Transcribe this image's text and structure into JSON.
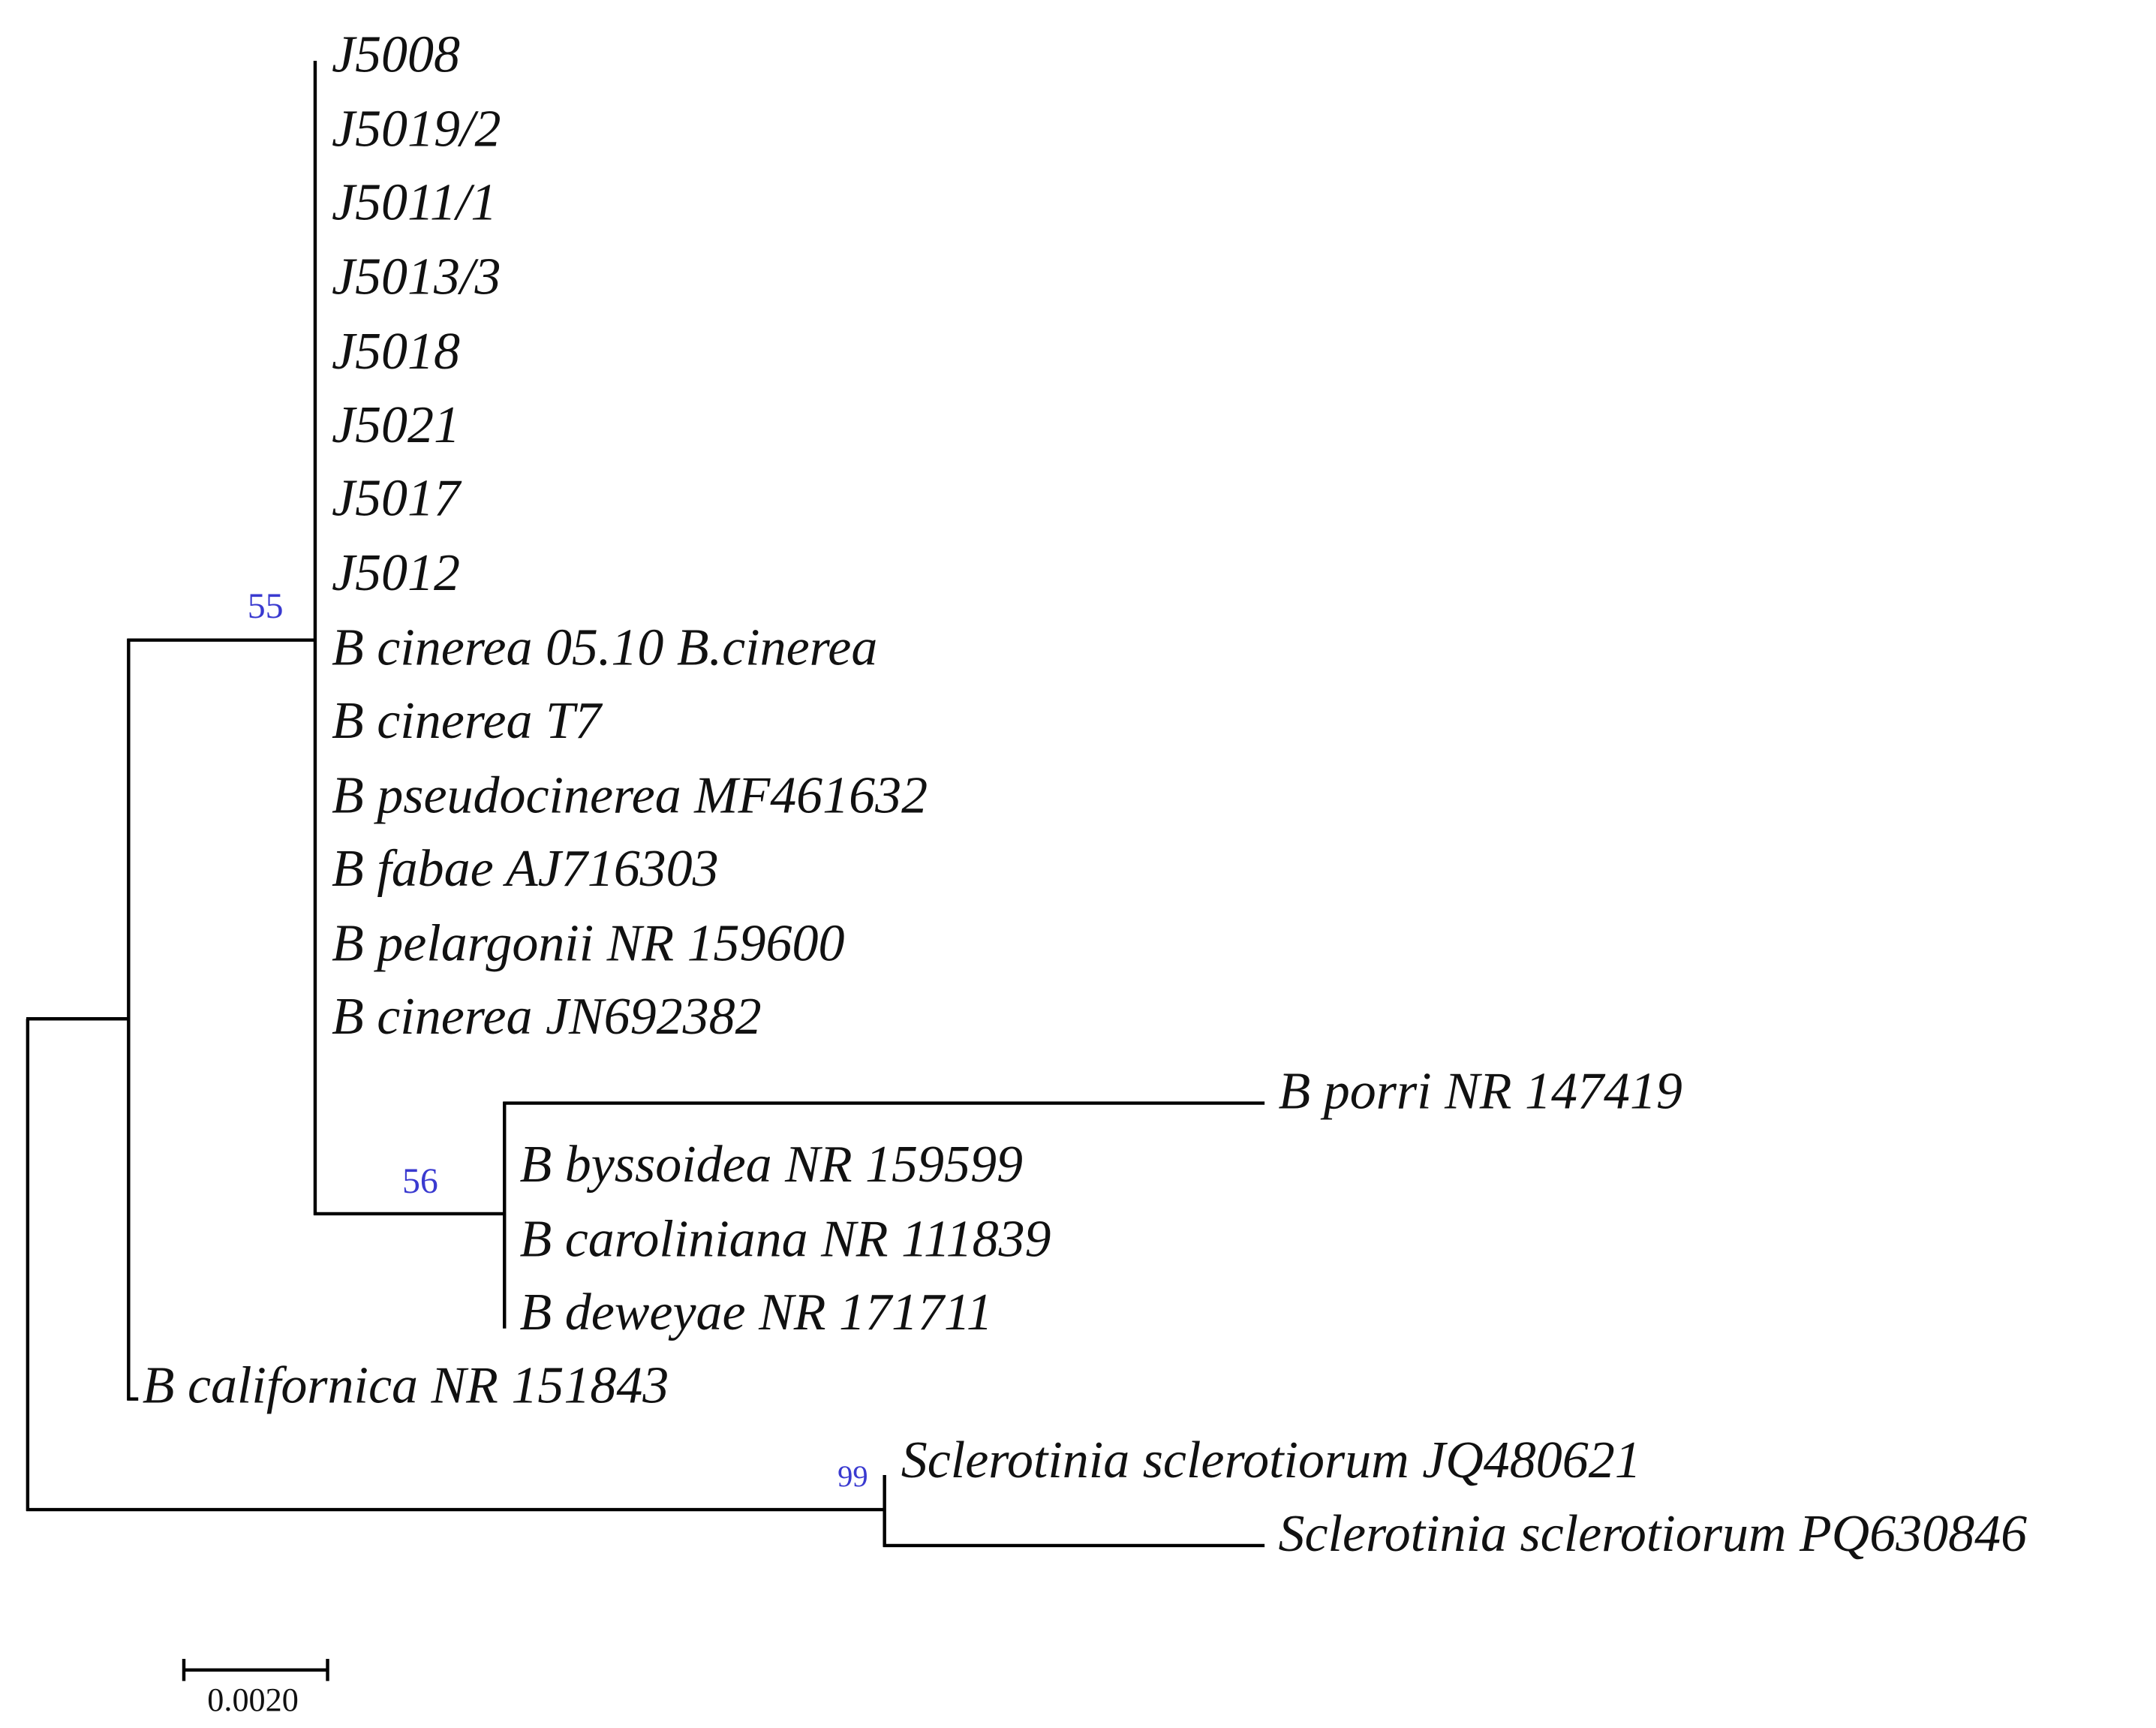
{
  "leaves": [
    "J5008",
    "J5019/2",
    "J5011/1",
    "J5013/3",
    "J5018",
    "J5021",
    "J5017",
    "J5012",
    "B cinerea 05.10 B.cinerea",
    "B cinerea T7",
    "B pseudocinerea MF461632",
    "B fabae AJ716303",
    "B pelargonii NR 159600",
    "B cinerea JN692382",
    "B porri NR 147419",
    "B byssoidea NR 159599",
    "B caroliniana NR 111839",
    "B deweyae NR 171711",
    "B californica NR 151843",
    "Sclerotinia sclerotiorum JQ480621",
    "Sclerotinia sclerotiorum PQ630846"
  ],
  "bootstrap": [
    55,
    56,
    99
  ],
  "scale_bar": "0.0020"
}
